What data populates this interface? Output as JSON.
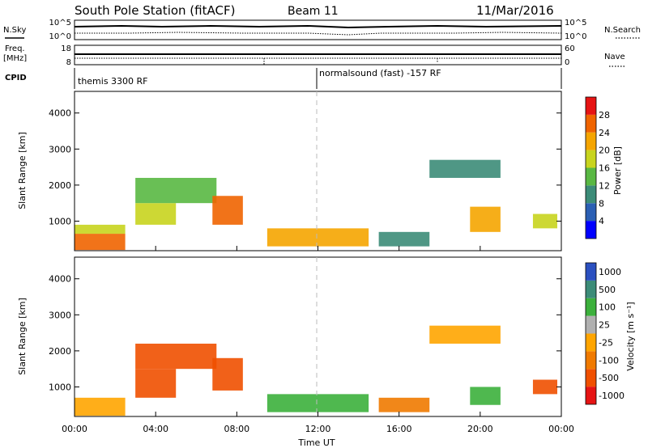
{
  "header": {
    "station": "South Pole Station (fitACF)",
    "beam": "Beam 11",
    "date": "11/Mar/2016"
  },
  "strips": {
    "nsky_label": "N.Sky",
    "nsky_ticks": [
      "10^5",
      "10^0"
    ],
    "nsearch_label": "N.Search",
    "nsearch_ticks": [
      "10^5",
      "10^0"
    ],
    "freq_label": "Freq.",
    "freq_unit": "[MHz]",
    "freq_ticks": [
      "18",
      "8"
    ],
    "nave_label": "Nave",
    "nave_ticks": [
      "60",
      "0"
    ],
    "cpid_label": "CPID",
    "cpid_left": "themis 3300 RF",
    "cpid_right": "normalsound (fast) -157 RF"
  },
  "chart_data": [
    {
      "type": "heatmap",
      "name": "power",
      "ylabel": "Slant Range [km]",
      "xlabel": "Time UT",
      "ylim": [
        180,
        4600
      ],
      "xlim": [
        0,
        24
      ],
      "y_ticks": [
        "1000",
        "2000",
        "3000",
        "4000"
      ],
      "x_ticks": [
        "00:00",
        "04:00",
        "08:00",
        "12:00",
        "16:00",
        "20:00",
        "00:00"
      ],
      "colorbar_label": "Power [dB]",
      "colorbar_ticks": [
        "4",
        "8",
        "12",
        "16",
        "20",
        "24",
        "28"
      ],
      "colorbar_colors": [
        "#0000ff",
        "#2b5fb4",
        "#3c8c78",
        "#59b843",
        "#c8d41e",
        "#f5a500",
        "#f06400",
        "#e61414"
      ],
      "regions": [
        {
          "t": [
            0.0,
            2.5
          ],
          "r": [
            200,
            650
          ],
          "v": 27
        },
        {
          "t": [
            0.0,
            2.5
          ],
          "r": [
            650,
            900
          ],
          "v": 16
        },
        {
          "t": [
            3.0,
            5.0
          ],
          "r": [
            900,
            1500
          ],
          "v": 18
        },
        {
          "t": [
            3.0,
            7.0
          ],
          "r": [
            1500,
            2200
          ],
          "v": 14
        },
        {
          "t": [
            6.8,
            8.3
          ],
          "r": [
            900,
            1700
          ],
          "v": 24
        },
        {
          "t": [
            9.5,
            14.5
          ],
          "r": [
            300,
            800
          ],
          "v": 22
        },
        {
          "t": [
            15.0,
            17.5
          ],
          "r": [
            300,
            700
          ],
          "v": 10
        },
        {
          "t": [
            19.5,
            21.0
          ],
          "r": [
            700,
            1400
          ],
          "v": 20
        },
        {
          "t": [
            17.5,
            21.0
          ],
          "r": [
            2200,
            2700
          ],
          "v": 8
        },
        {
          "t": [
            22.6,
            23.8
          ],
          "r": [
            800,
            1200
          ],
          "v": 18
        }
      ]
    },
    {
      "type": "heatmap",
      "name": "velocity",
      "ylabel": "Slant Range [km]",
      "xlabel": "Time UT",
      "ylim": [
        180,
        4600
      ],
      "xlim": [
        0,
        24
      ],
      "y_ticks": [
        "1000",
        "2000",
        "3000",
        "4000"
      ],
      "x_ticks": [
        "00:00",
        "04:00",
        "08:00",
        "12:00",
        "16:00",
        "20:00",
        "00:00"
      ],
      "colorbar_label": "Velocity [m s⁻¹]",
      "colorbar_ticks": [
        "1000",
        "500",
        "100",
        "25",
        "-25",
        "-100",
        "-500",
        "-1000"
      ],
      "colorbar_colors": [
        "#2b50c0",
        "#3c8c78",
        "#3cb03c",
        "#b0b0b0",
        "#ffa500",
        "#f07a00",
        "#f05000",
        "#e61414"
      ],
      "regions": [
        {
          "t": [
            0.0,
            2.5
          ],
          "r": [
            200,
            700
          ],
          "v": 10
        },
        {
          "t": [
            3.0,
            5.0
          ],
          "r": [
            700,
            1500
          ],
          "v": -300
        },
        {
          "t": [
            3.0,
            7.0
          ],
          "r": [
            1500,
            2200
          ],
          "v": -200
        },
        {
          "t": [
            6.8,
            8.3
          ],
          "r": [
            900,
            1800
          ],
          "v": -300
        },
        {
          "t": [
            9.5,
            14.5
          ],
          "r": [
            300,
            800
          ],
          "v": 150
        },
        {
          "t": [
            15.0,
            17.5
          ],
          "r": [
            300,
            700
          ],
          "v": -60
        },
        {
          "t": [
            19.5,
            21.0
          ],
          "r": [
            500,
            1000
          ],
          "v": 300
        },
        {
          "t": [
            17.5,
            21.0
          ],
          "r": [
            2200,
            2700
          ],
          "v": 10
        },
        {
          "t": [
            22.6,
            23.8
          ],
          "r": [
            800,
            1200
          ],
          "v": -300
        }
      ]
    }
  ]
}
